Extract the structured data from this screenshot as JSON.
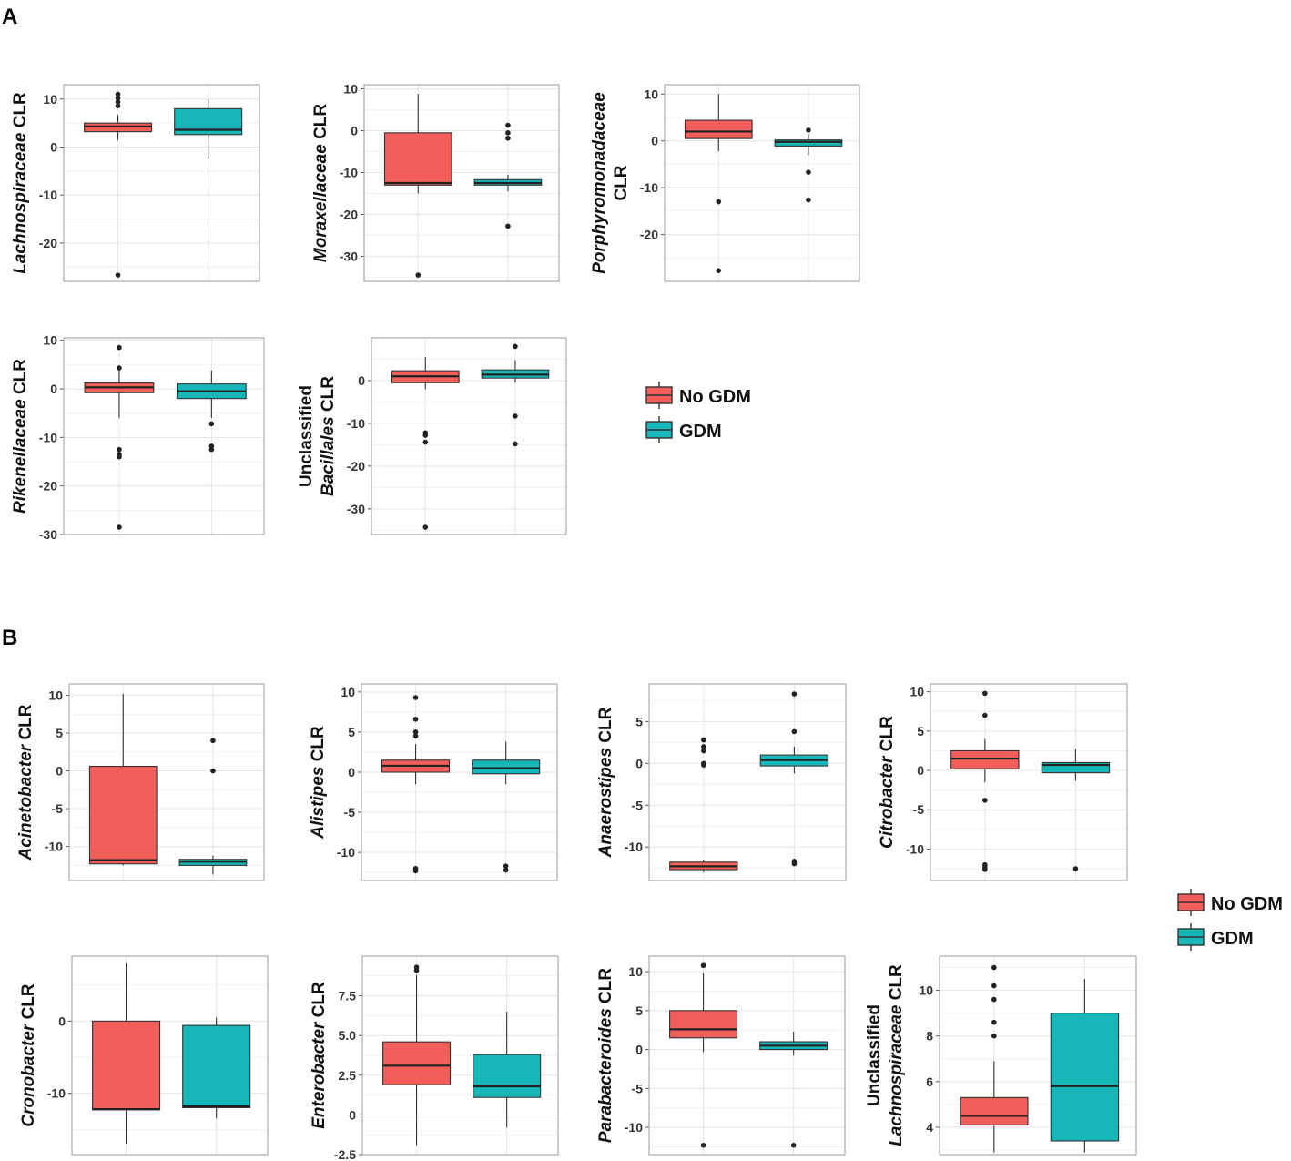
{
  "figure": {
    "panel_labels": [
      "A",
      "B"
    ],
    "colors": {
      "no_gdm": "#F25E5A",
      "gdm": "#16B6B9",
      "grid": "#E5E5E5",
      "frame": "#B0B0B0",
      "line": "#333333"
    }
  },
  "legends": [
    {
      "items": [
        {
          "label": "No GDM",
          "color": "#F25E5A"
        },
        {
          "label": "GDM",
          "color": "#16B6B9"
        }
      ]
    },
    {
      "items": [
        {
          "label": "No GDM",
          "color": "#F25E5A"
        },
        {
          "label": "GDM",
          "color": "#16B6B9"
        }
      ]
    }
  ],
  "chart_data": [
    {
      "panel": "A",
      "type": "box",
      "ylabel_lines": [
        [
          {
            "t": "Lachnospiraceae",
            "i": true
          },
          {
            "t": " CLR",
            "i": false
          }
        ]
      ],
      "ylim": [
        -28,
        13
      ],
      "yticks": [
        10,
        0,
        -10,
        -20
      ],
      "yticklabels": [
        "10",
        "0",
        "-10",
        "-20"
      ],
      "series": [
        {
          "name": "No GDM",
          "color": "#F25E5A",
          "q1": 3.2,
          "median": 4.3,
          "q3": 5.0,
          "whisker_low": 1.5,
          "whisker_high": 6.7,
          "outliers": [
            11.0,
            10.2,
            9.4,
            8.6,
            -26.7
          ]
        },
        {
          "name": "GDM",
          "color": "#16B6B9",
          "q1": 2.6,
          "median": 3.6,
          "q3": 8.0,
          "whisker_low": -2.5,
          "whisker_high": 10.0,
          "outliers": []
        }
      ]
    },
    {
      "panel": "A",
      "type": "box",
      "ylabel_lines": [
        [
          {
            "t": "Moraxellaceae",
            "i": true
          },
          {
            "t": " CLR",
            "i": false
          }
        ]
      ],
      "ylim": [
        -36,
        11
      ],
      "yticks": [
        10,
        0,
        -10,
        -20,
        -30
      ],
      "yticklabels": [
        "10",
        "0",
        "-10",
        "-20",
        "-30"
      ],
      "series": [
        {
          "name": "No GDM",
          "color": "#F25E5A",
          "q1": -13.0,
          "median": -12.5,
          "q3": -0.5,
          "whisker_low": -15.0,
          "whisker_high": 8.8,
          "outliers": [
            -34.5
          ]
        },
        {
          "name": "GDM",
          "color": "#16B6B9",
          "q1": -13.0,
          "median": -12.5,
          "q3": -11.7,
          "whisker_low": -14.5,
          "whisker_high": -10.5,
          "outliers": [
            1.3,
            -0.5,
            -1.8,
            -22.8
          ]
        }
      ]
    },
    {
      "panel": "A",
      "type": "box",
      "ylabel_lines": [
        [
          {
            "t": "Porphyromonadaceae",
            "i": true
          }
        ],
        [
          {
            "t": "CLR",
            "i": false
          }
        ]
      ],
      "ylim": [
        -30,
        12
      ],
      "yticks": [
        10,
        0,
        -10,
        -20
      ],
      "yticklabels": [
        "10",
        "0",
        "-10",
        "-20"
      ],
      "series": [
        {
          "name": "No GDM",
          "color": "#F25E5A",
          "q1": 0.5,
          "median": 2.0,
          "q3": 4.4,
          "whisker_low": -2.2,
          "whisker_high": 10.0,
          "outliers": [
            -13.0,
            -27.7
          ]
        },
        {
          "name": "GDM",
          "color": "#16B6B9",
          "q1": -1.1,
          "median": -0.2,
          "q3": 0.2,
          "whisker_low": -3.0,
          "whisker_high": 1.5,
          "outliers": [
            2.3,
            -6.7,
            -12.6
          ]
        }
      ]
    },
    {
      "panel": "A",
      "type": "box",
      "ylabel_lines": [
        [
          {
            "t": "Rikenellaceae",
            "i": true
          },
          {
            "t": " CLR",
            "i": false
          }
        ]
      ],
      "ylim": [
        -30,
        10.5
      ],
      "yticks": [
        10,
        0,
        -10,
        -20,
        -30
      ],
      "yticklabels": [
        "10",
        "0",
        "-10",
        "-20",
        "-30"
      ],
      "series": [
        {
          "name": "No GDM",
          "color": "#F25E5A",
          "q1": -0.8,
          "median": 0.3,
          "q3": 1.2,
          "whisker_low": -6.0,
          "whisker_high": 4.2,
          "outliers": [
            8.5,
            4.3,
            -12.5,
            -13.5,
            -14.0,
            -28.5
          ]
        },
        {
          "name": "GDM",
          "color": "#16B6B9",
          "q1": -2.0,
          "median": -0.5,
          "q3": 1.0,
          "whisker_low": -6.0,
          "whisker_high": 3.8,
          "outliers": [
            -7.2,
            -11.8,
            -12.5
          ]
        }
      ]
    },
    {
      "panel": "A",
      "type": "box",
      "ylabel_lines": [
        [
          {
            "t": "Unclassified",
            "i": false
          }
        ],
        [
          {
            "t": "Bacillales",
            "i": true
          },
          {
            "t": " CLR",
            "i": false
          }
        ]
      ],
      "ylim": [
        -36,
        10
      ],
      "yticks": [
        0,
        -10,
        -20,
        -30
      ],
      "yticklabels": [
        "0",
        "-10",
        "-20",
        "-30"
      ],
      "series": [
        {
          "name": "No GDM",
          "color": "#F25E5A",
          "q1": -0.5,
          "median": 1.0,
          "q3": 2.3,
          "whisker_low": -2.0,
          "whisker_high": 5.5,
          "outliers": [
            -12.2,
            -12.8,
            -14.4,
            -34.3
          ]
        },
        {
          "name": "GDM",
          "color": "#16B6B9",
          "q1": 0.6,
          "median": 1.4,
          "q3": 2.5,
          "whisker_low": -0.5,
          "whisker_high": 4.8,
          "outliers": [
            8.0,
            -8.3,
            -14.8
          ]
        }
      ]
    },
    {
      "panel": "B",
      "type": "box",
      "ylabel_lines": [
        [
          {
            "t": "Acinetobacter",
            "i": true
          },
          {
            "t": " CLR",
            "i": false
          }
        ]
      ],
      "ylim": [
        -14.5,
        11.5
      ],
      "yticks": [
        10,
        5,
        0,
        -5,
        -10
      ],
      "yticklabels": [
        "10",
        "5",
        "0",
        "-5",
        "-10"
      ],
      "series": [
        {
          "name": "No GDM",
          "color": "#F25E5A",
          "q1": -12.3,
          "median": -11.8,
          "q3": 0.6,
          "whisker_low": -12.5,
          "whisker_high": 10.2,
          "outliers": []
        },
        {
          "name": "GDM",
          "color": "#16B6B9",
          "q1": -12.5,
          "median": -12.0,
          "q3": -11.7,
          "whisker_low": -13.7,
          "whisker_high": -11.2,
          "outliers": [
            4.0,
            0.0
          ]
        }
      ]
    },
    {
      "panel": "B",
      "type": "box",
      "ylabel_lines": [
        [
          {
            "t": "Alistipes",
            "i": true
          },
          {
            "t": " CLR",
            "i": false
          }
        ]
      ],
      "ylim": [
        -13.5,
        11
      ],
      "yticks": [
        10,
        5,
        0,
        -5,
        -10
      ],
      "yticklabels": [
        "10",
        "5",
        "0",
        "-5",
        "-10"
      ],
      "series": [
        {
          "name": "No GDM",
          "color": "#F25E5A",
          "q1": 0.0,
          "median": 0.8,
          "q3": 1.5,
          "whisker_low": -1.5,
          "whisker_high": 3.5,
          "outliers": [
            9.3,
            6.6,
            5.0,
            4.5,
            -12.0,
            -12.3
          ]
        },
        {
          "name": "GDM",
          "color": "#16B6B9",
          "q1": -0.2,
          "median": 0.5,
          "q3": 1.5,
          "whisker_low": -1.5,
          "whisker_high": 3.8,
          "outliers": [
            -11.7,
            -12.2
          ]
        }
      ]
    },
    {
      "panel": "B",
      "type": "box",
      "ylabel_lines": [
        [
          {
            "t": "Anaerostipes",
            "i": true
          },
          {
            "t": " CLR",
            "i": false
          }
        ]
      ],
      "ylim": [
        -14,
        9.5
      ],
      "yticks": [
        5,
        0,
        -5,
        -10
      ],
      "yticklabels": [
        "5",
        "0",
        "-5",
        "-10"
      ],
      "series": [
        {
          "name": "No GDM",
          "color": "#F25E5A",
          "q1": -12.7,
          "median": -12.3,
          "q3": -11.8,
          "whisker_low": -13.0,
          "whisker_high": -11.5,
          "outliers": [
            2.8,
            2.0,
            1.5,
            0.0,
            -0.2
          ]
        },
        {
          "name": "GDM",
          "color": "#16B6B9",
          "q1": -0.3,
          "median": 0.4,
          "q3": 1.0,
          "whisker_low": -1.2,
          "whisker_high": 2.0,
          "outliers": [
            8.3,
            3.8,
            -11.7,
            -12.0
          ]
        }
      ]
    },
    {
      "panel": "B",
      "type": "box",
      "ylabel_lines": [
        [
          {
            "t": "Citrobacter",
            "i": true
          },
          {
            "t": " CLR",
            "i": false
          }
        ]
      ],
      "ylim": [
        -14,
        11
      ],
      "yticks": [
        10,
        5,
        0,
        -5,
        -10
      ],
      "yticklabels": [
        "10",
        "5",
        "0",
        "-5",
        "-10"
      ],
      "series": [
        {
          "name": "No GDM",
          "color": "#F25E5A",
          "q1": 0.2,
          "median": 1.5,
          "q3": 2.5,
          "whisker_low": -1.5,
          "whisker_high": 4.0,
          "outliers": [
            9.8,
            7.0,
            -3.8,
            -12.0,
            -12.3,
            -12.6
          ]
        },
        {
          "name": "GDM",
          "color": "#16B6B9",
          "q1": -0.3,
          "median": 0.7,
          "q3": 1.0,
          "whisker_low": -1.3,
          "whisker_high": 2.7,
          "outliers": [
            -12.5
          ]
        }
      ]
    },
    {
      "panel": "B",
      "type": "box",
      "ylabel_lines": [
        [
          {
            "t": "Cronobacter",
            "i": true
          },
          {
            "t": " CLR",
            "i": false
          }
        ]
      ],
      "ylim": [
        -18.5,
        9
      ],
      "yticks": [
        0,
        -10
      ],
      "yticklabels": [
        "0",
        "-10"
      ],
      "series": [
        {
          "name": "No GDM",
          "color": "#F25E5A",
          "q1": -12.3,
          "median": -12.2,
          "q3": 0.0,
          "whisker_low": -17.0,
          "whisker_high": 8.0,
          "outliers": []
        },
        {
          "name": "GDM",
          "color": "#16B6B9",
          "q1": -12.0,
          "median": -11.8,
          "q3": -0.6,
          "whisker_low": -13.5,
          "whisker_high": 0.5,
          "outliers": []
        }
      ]
    },
    {
      "panel": "B",
      "type": "box",
      "ylabel_lines": [
        [
          {
            "t": "Enterobacter",
            "i": true
          },
          {
            "t": " CLR",
            "i": false
          }
        ]
      ],
      "ylim": [
        -2.5,
        10
      ],
      "yticks": [
        7.5,
        5.0,
        2.5,
        0,
        -2.5
      ],
      "yticklabels": [
        "7.5",
        "5.0",
        "2.5",
        "0",
        "-2.5"
      ],
      "series": [
        {
          "name": "No GDM",
          "color": "#F25E5A",
          "q1": 1.9,
          "median": 3.1,
          "q3": 4.6,
          "whisker_low": -1.9,
          "whisker_high": 8.8,
          "outliers": [
            9.3,
            9.1
          ]
        },
        {
          "name": "GDM",
          "color": "#16B6B9",
          "q1": 1.1,
          "median": 1.8,
          "q3": 3.8,
          "whisker_low": -0.8,
          "whisker_high": 6.5,
          "outliers": []
        }
      ]
    },
    {
      "panel": "B",
      "type": "box",
      "ylabel_lines": [
        [
          {
            "t": "Parabacteroides",
            "i": true
          },
          {
            "t": " CLR",
            "i": false
          }
        ]
      ],
      "ylim": [
        -13.5,
        12
      ],
      "yticks": [
        10,
        5,
        0,
        -5,
        -10
      ],
      "yticklabels": [
        "10",
        "5",
        "0",
        "-5",
        "-10"
      ],
      "series": [
        {
          "name": "No GDM",
          "color": "#F25E5A",
          "q1": 1.5,
          "median": 2.6,
          "q3": 5.0,
          "whisker_low": -0.3,
          "whisker_high": 9.8,
          "outliers": [
            10.8,
            -12.3
          ]
        },
        {
          "name": "GDM",
          "color": "#16B6B9",
          "q1": 0.0,
          "median": 0.5,
          "q3": 1.0,
          "whisker_low": -0.8,
          "whisker_high": 2.3,
          "outliers": [
            -12.3
          ]
        }
      ]
    },
    {
      "panel": "B",
      "type": "box",
      "ylabel_lines": [
        [
          {
            "t": "Unclassified",
            "i": false
          }
        ],
        [
          {
            "t": "Lachnospiraceae",
            "i": true
          },
          {
            "t": " CLR",
            "i": false
          }
        ]
      ],
      "ylim": [
        2.8,
        11.5
      ],
      "yticks": [
        10,
        8,
        6,
        4
      ],
      "yticklabels": [
        "10",
        "8",
        "6",
        "4"
      ],
      "series": [
        {
          "name": "No GDM",
          "color": "#F25E5A",
          "q1": 4.1,
          "median": 4.5,
          "q3": 5.3,
          "whisker_low": 2.9,
          "whisker_high": 6.9,
          "outliers": [
            11.0,
            10.2,
            9.6,
            8.6,
            8.0
          ]
        },
        {
          "name": "GDM",
          "color": "#16B6B9",
          "q1": 3.4,
          "median": 5.8,
          "q3": 9.0,
          "whisker_low": 2.9,
          "whisker_high": 10.5,
          "outliers": []
        }
      ]
    }
  ]
}
